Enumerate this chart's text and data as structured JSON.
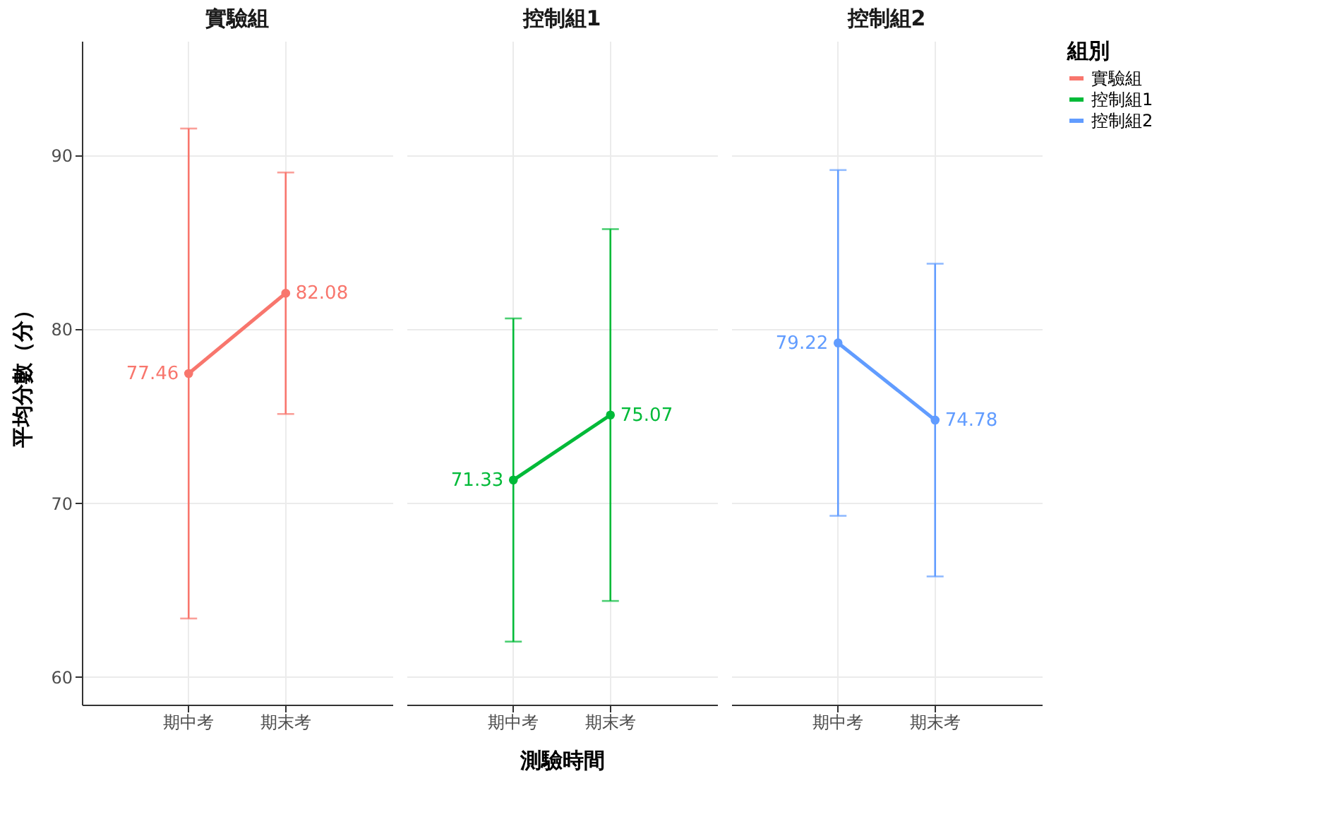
{
  "chart_data": [
    {
      "type": "line",
      "title": "實驗組",
      "ylabel": "平均分數（分）",
      "categories": [
        "期中考",
        "期末考"
      ],
      "ylim": [
        58.4,
        96.6
      ],
      "yticks": [
        60,
        70,
        80,
        90
      ],
      "grid": true,
      "marker": "circle",
      "data_labels": true,
      "series": [
        {
          "name": "實驗組",
          "color": "#f8766d",
          "values": [
            77.46,
            82.08
          ],
          "errors": [
            14.1,
            6.95
          ]
        }
      ]
    },
    {
      "type": "line",
      "title": "控制組1",
      "xlabel": "測驗時間",
      "categories": [
        "期中考",
        "期末考"
      ],
      "ylim": [
        58.4,
        96.6
      ],
      "yticks": [
        60,
        70,
        80,
        90
      ],
      "grid": true,
      "marker": "circle",
      "data_labels": true,
      "tick_labels": "x",
      "series": [
        {
          "name": "控制組1",
          "color": "#00ba38",
          "values": [
            71.33,
            75.07
          ],
          "errors": [
            9.3,
            10.7
          ]
        }
      ]
    },
    {
      "type": "line",
      "title": "控制組2",
      "categories": [
        "期中考",
        "期末考"
      ],
      "ylim": [
        58.4,
        96.6
      ],
      "yticks": [
        60,
        70,
        80,
        90
      ],
      "grid": true,
      "marker": "circle",
      "data_labels": true,
      "tick_labels": "x",
      "legend": "right",
      "legend_title": "組別",
      "series": [
        {
          "name": "控制組2",
          "color": "#619cff",
          "values": [
            79.22,
            74.78
          ],
          "errors": [
            9.95,
            9.0
          ]
        }
      ]
    }
  ]
}
